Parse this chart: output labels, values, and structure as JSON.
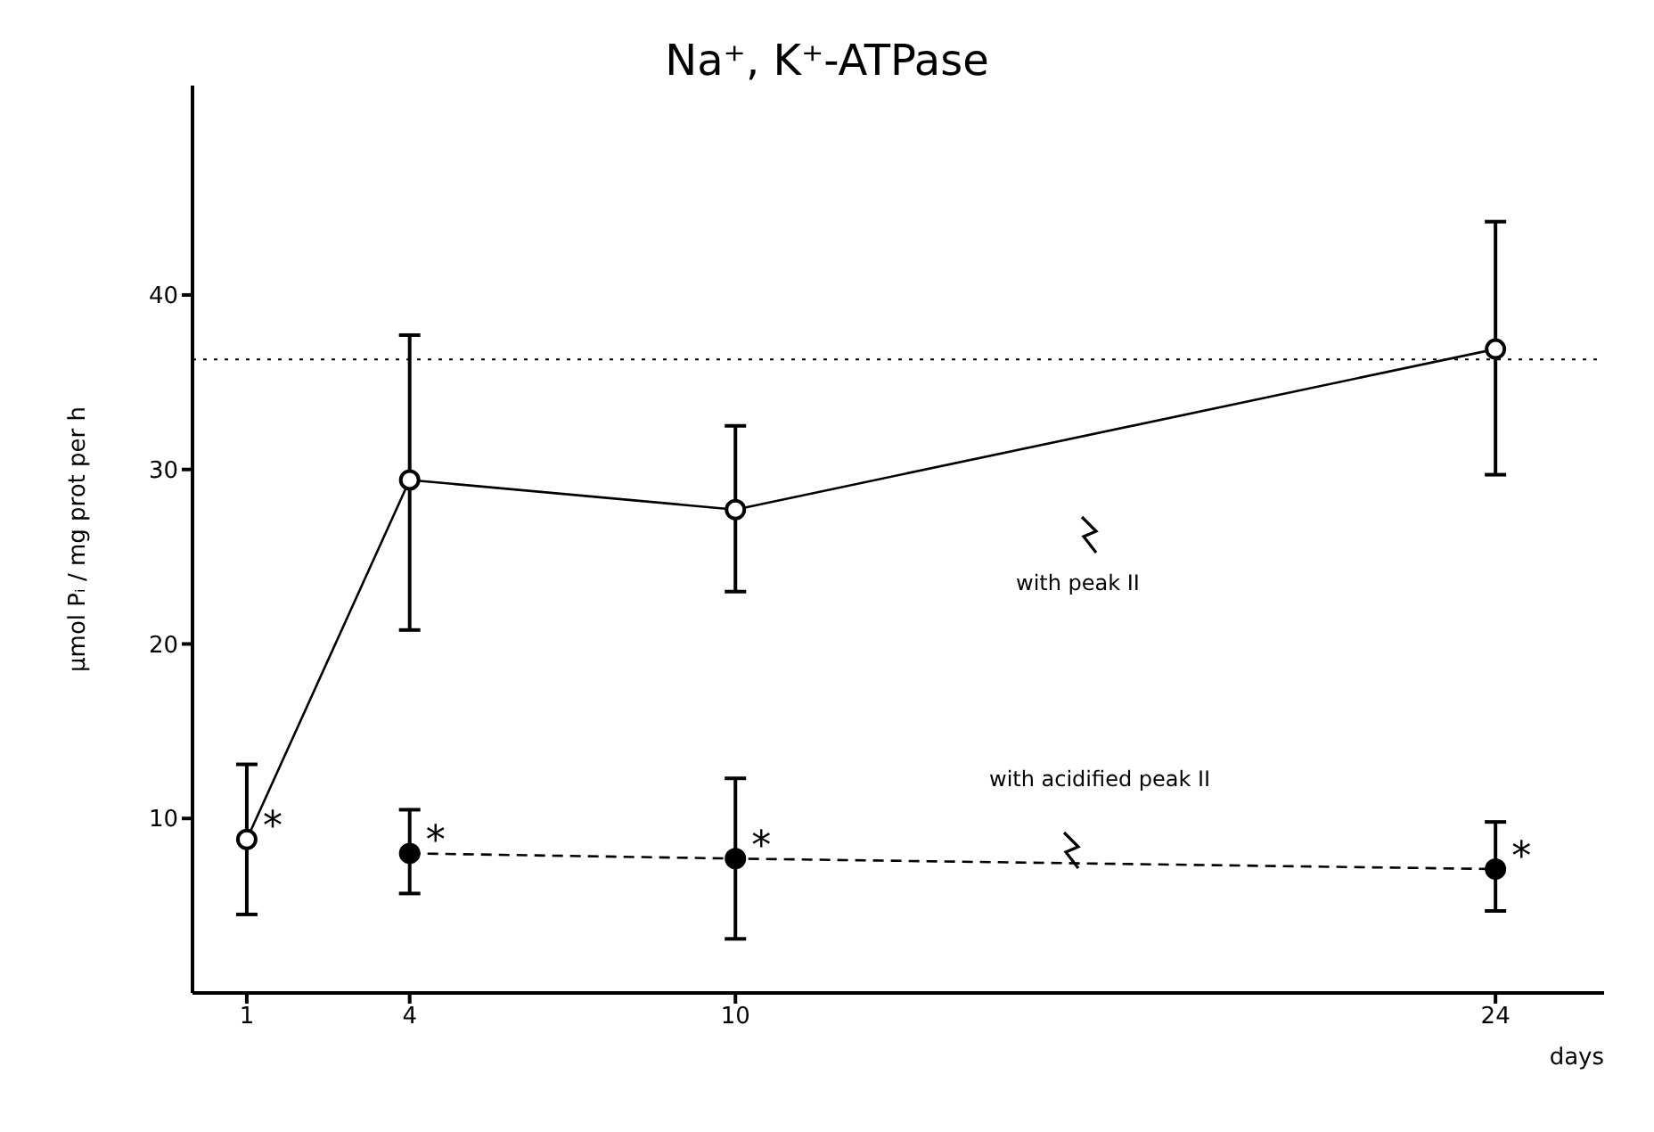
{
  "chart_data": {
    "type": "line",
    "title": "Na⁺, K⁺-ATPase",
    "xlabel": "days",
    "ylabel": "µmol Pᵢ / mg prot per h",
    "x": [
      1,
      4,
      10,
      24
    ],
    "series": [
      {
        "color": "#000000",
        "values": [
          8.8,
          29.4,
          27.7,
          36.9
        ],
        "errors": [
          [
            4.5,
            13.1
          ],
          [
            20.8,
            37.7
          ],
          [
            23.0,
            32.5
          ],
          [
            29.7,
            44.2
          ]
        ],
        "line_style": "solid"
      },
      {
        "color": "#000000",
        "x": [
          4,
          10,
          24
        ],
        "values": [
          8.0,
          7.7,
          7.1
        ],
        "errors": [
          [
            5.7,
            10.5
          ],
          [
            3.1,
            12.3
          ],
          [
            4.7,
            9.8
          ]
        ],
        "line_style": "dashed"
      }
    ],
    "marker": "circle",
    "xlim": [
      0,
      26
    ],
    "xticks": [
      1,
      4,
      10,
      24
    ],
    "ylim": [
      0,
      52
    ],
    "yticks": [
      10,
      20,
      30,
      40
    ],
    "ref_lines": [
      {
        "axis": "y",
        "value": 36.3,
        "line_style": "dotted",
        "color": "#000000"
      }
    ],
    "annotations": [
      "with peak II",
      "with acidified peak II",
      {
        "text": "*",
        "x": 1,
        "y": 8.8
      },
      {
        "text": "*",
        "x": 4,
        "y": 8.0
      },
      {
        "text": "*",
        "x": 10,
        "y": 7.7
      },
      {
        "text": "*",
        "x": 24,
        "y": 7.1
      }
    ],
    "grid": false,
    "legend": false
  }
}
